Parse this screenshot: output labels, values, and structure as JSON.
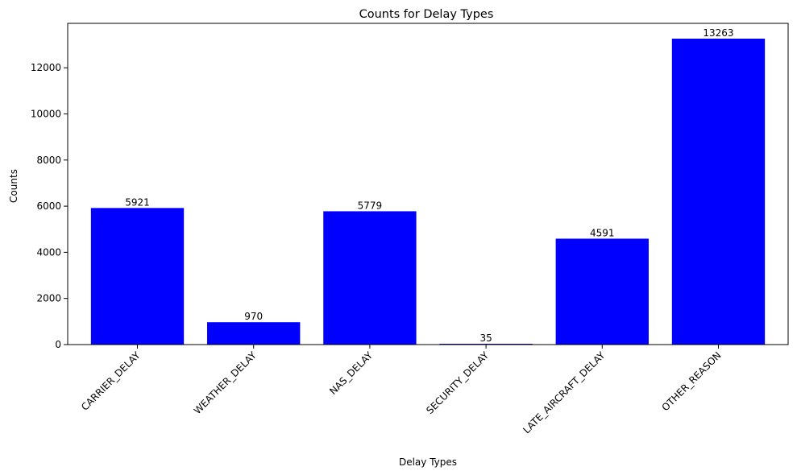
{
  "chart_data": {
    "type": "bar",
    "title": "Counts for Delay Types",
    "xlabel": "Delay Types",
    "ylabel": "Counts",
    "categories": [
      "CARRIER_DELAY",
      "WEATHER_DELAY",
      "NAS_DELAY",
      "SECURITY_DELAY",
      "LATE_AIRCRAFT_DELAY",
      "OTHER_REASON"
    ],
    "values": [
      5921,
      970,
      5779,
      35,
      4591,
      13263
    ],
    "data_labels": [
      "5921",
      "970",
      "5779",
      "35",
      "4591",
      "13263"
    ],
    "ylim": [
      0,
      13926
    ],
    "yticks": [
      0,
      2000,
      4000,
      6000,
      8000,
      10000,
      12000
    ],
    "ytick_labels": [
      "0",
      "2000",
      "4000",
      "6000",
      "8000",
      "10000",
      "12000"
    ],
    "bar_color": "#0000ff",
    "grid": false,
    "legend": "none"
  }
}
